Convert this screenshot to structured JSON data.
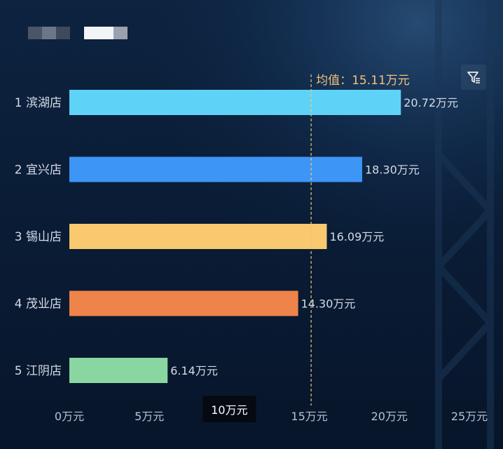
{
  "chart_data": {
    "type": "bar",
    "orientation": "horizontal",
    "categories": [
      "滨湖店",
      "宜兴店",
      "锡山店",
      "茂业店",
      "江阴店"
    ],
    "ranks": [
      "1",
      "2",
      "3",
      "4",
      "5"
    ],
    "values": [
      20.72,
      18.3,
      16.09,
      14.3,
      6.14
    ],
    "value_labels": [
      "20.72万元",
      "18.30万元",
      "16.09万元",
      "14.30万元",
      "6.14万元"
    ],
    "bar_colors": [
      "#5fd3f7",
      "#3d95f6",
      "#f8c96e",
      "#ef844a",
      "#8ad6a1"
    ],
    "xlim": [
      0,
      25
    ],
    "x_ticks": [
      {
        "value": 0,
        "label": "0万元"
      },
      {
        "value": 5,
        "label": "5万元"
      },
      {
        "value": 10,
        "label": "10万元"
      },
      {
        "value": 15,
        "label": "15万元"
      },
      {
        "value": 20,
        "label": "20万元"
      },
      {
        "value": 25,
        "label": "25万元"
      }
    ],
    "x_unit": "万元",
    "mean": {
      "value": 15.11,
      "label": "均值：15.11万元",
      "color": "#f2c27a"
    },
    "tooltip": {
      "x_value": 10,
      "label": "10万元"
    },
    "grid": false,
    "legend": "none"
  },
  "toolbar": {
    "filter_icon": "filter-icon"
  },
  "colors": {
    "background": "#0a1b33",
    "text": "#d4dbe6",
    "axis_text": "#b8c2d3"
  }
}
